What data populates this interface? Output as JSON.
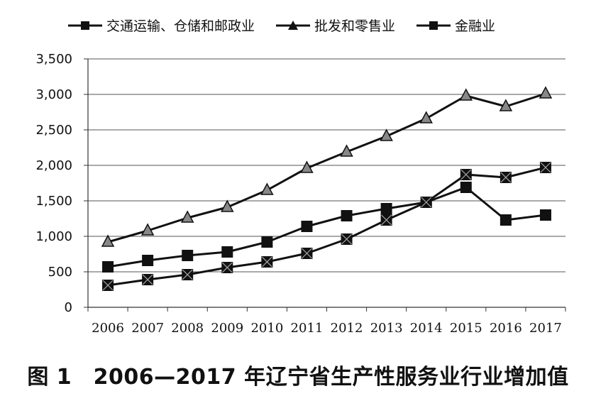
{
  "chart_data": {
    "type": "line",
    "x": [
      "2006",
      "2007",
      "2008",
      "2009",
      "2010",
      "2011",
      "2012",
      "2013",
      "2014",
      "2015",
      "2016",
      "2017"
    ],
    "series": [
      {
        "name": "交通运输、仓储和邮政业",
        "marker": "square",
        "values": [
          570,
          660,
          730,
          780,
          920,
          1140,
          1290,
          1390,
          1480,
          1690,
          1230,
          1300
        ]
      },
      {
        "name": "批发和零售业",
        "marker": "triangle",
        "values": [
          920,
          1080,
          1260,
          1410,
          1650,
          1960,
          2190,
          2410,
          2660,
          2980,
          2830,
          3010
        ]
      },
      {
        "name": "金融业",
        "marker": "square-x",
        "values": [
          310,
          390,
          460,
          560,
          640,
          760,
          960,
          1230,
          1480,
          1870,
          1830,
          1970
        ]
      }
    ],
    "ylim": [
      0,
      3500
    ],
    "yticks": [
      "0",
      "500",
      "1,000",
      "1,500",
      "2,000",
      "2,500",
      "3,000",
      "3,500"
    ],
    "ytick_values": [
      0,
      500,
      1000,
      1500,
      2000,
      2500,
      3000,
      3500
    ],
    "grid": true,
    "legend_position": "top",
    "caption": "图 1　2006—2017 年辽宁省生产性服务业行业增加值"
  }
}
